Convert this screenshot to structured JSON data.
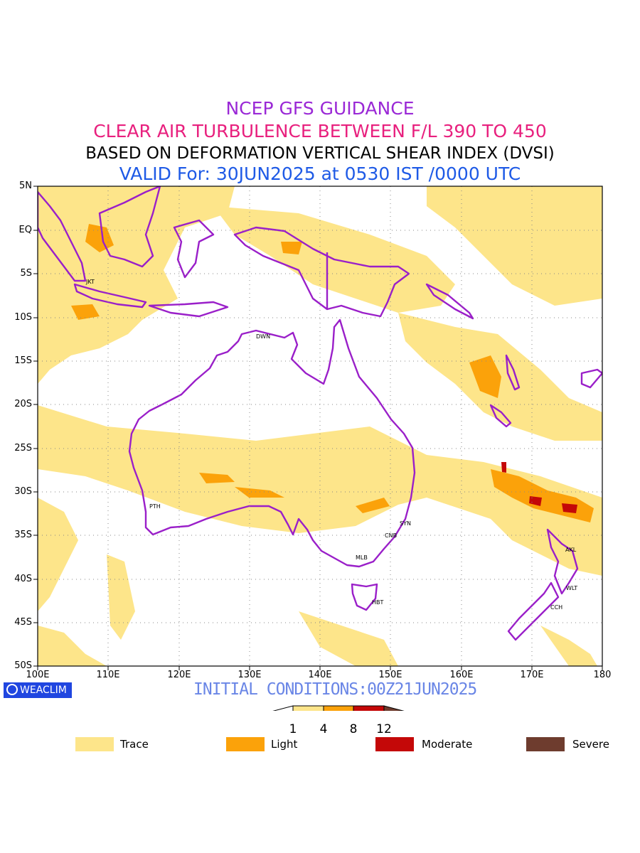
{
  "titles": {
    "line1": "NCEP GFS GUIDANCE",
    "line2": "CLEAR AIR TURBULENCE BETWEEN F/L 390 TO 450",
    "line3": "BASED ON DEFORMATION VERTICAL SHEAR INDEX (DVSI)",
    "line4": "VALID For: 30JUN2025 at 0530 IST /0000 UTC"
  },
  "lat_labels": [
    "5N",
    "EQ",
    "5S",
    "10S",
    "15S",
    "20S",
    "25S",
    "30S",
    "35S",
    "40S",
    "45S",
    "50S"
  ],
  "lon_labels": [
    "100E",
    "110E",
    "120E",
    "130E",
    "140E",
    "150E",
    "160E",
    "170E",
    "180"
  ],
  "cities": {
    "jkt": "JKT",
    "dwn": "DWN",
    "pth": "PTH",
    "syn": "SYN",
    "cnb": "CNB",
    "mlb": "MLB",
    "hbt": "HBT",
    "akl": "AKL",
    "wlt": "WLT",
    "cch": "CCH"
  },
  "brand": "WEACLIM",
  "initial_conditions": "INITIAL CONDITIONS:00Z21JUN2025",
  "colorbar": {
    "ticks": [
      "1",
      "4",
      "8",
      "12"
    ]
  },
  "legend": [
    {
      "label": "Trace",
      "color": "#fde58a"
    },
    {
      "label": "Light",
      "color": "#fba20a"
    },
    {
      "label": "Moderate",
      "color": "#c40808"
    },
    {
      "label": "Severe",
      "color": "#6e3c2e"
    }
  ],
  "colors": {
    "coast": "#9a1fc9",
    "trace": "#fde58a",
    "light": "#fba20a",
    "moderate": "#c40808",
    "severe": "#6e3c2e"
  }
}
